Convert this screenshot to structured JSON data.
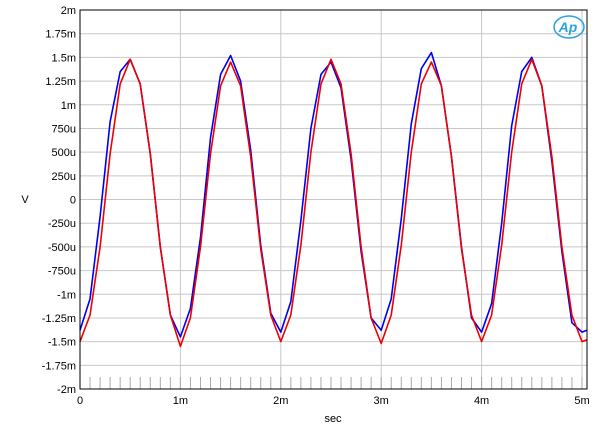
{
  "chart_data": {
    "type": "line",
    "title": "",
    "xlabel": "sec",
    "ylabel": "V",
    "xlim": [
      0,
      0.00505
    ],
    "ylim": [
      -0.002,
      0.002
    ],
    "grid": true,
    "legend": "none",
    "logo_text": "Ap",
    "x_ticks": [
      {
        "value": 0,
        "label": "0"
      },
      {
        "value": 0.001,
        "label": "1m"
      },
      {
        "value": 0.002,
        "label": "2m"
      },
      {
        "value": 0.003,
        "label": "3m"
      },
      {
        "value": 0.004,
        "label": "4m"
      },
      {
        "value": 0.005,
        "label": "5m"
      }
    ],
    "y_ticks": [
      {
        "value": 0.002,
        "label": "2m"
      },
      {
        "value": 0.00175,
        "label": "1.75m"
      },
      {
        "value": 0.0015,
        "label": "1.5m"
      },
      {
        "value": 0.00125,
        "label": "1.25m"
      },
      {
        "value": 0.001,
        "label": "1m"
      },
      {
        "value": 0.00075,
        "label": "750u"
      },
      {
        "value": 0.0005,
        "label": "500u"
      },
      {
        "value": 0.00025,
        "label": "250u"
      },
      {
        "value": 0,
        "label": "0"
      },
      {
        "value": -0.00025,
        "label": "-250u"
      },
      {
        "value": -0.0005,
        "label": "-500u"
      },
      {
        "value": -0.00075,
        "label": "-750u"
      },
      {
        "value": -0.001,
        "label": "-1m"
      },
      {
        "value": -0.00125,
        "label": "-1.25m"
      },
      {
        "value": -0.0015,
        "label": "-1.5m"
      },
      {
        "value": -0.00175,
        "label": "-1.75m"
      },
      {
        "value": -0.002,
        "label": "-2m"
      }
    ],
    "series": [
      {
        "color": "#0000ee",
        "x": [
          0,
          0.0001,
          0.0002,
          0.0003,
          0.0004,
          0.0005,
          0.0006,
          0.0007,
          0.0008,
          0.0009,
          0.001,
          0.0011,
          0.0012,
          0.0013,
          0.0014,
          0.0015,
          0.0016,
          0.0017,
          0.0018,
          0.0019,
          0.002,
          0.0021,
          0.0022,
          0.0023,
          0.0024,
          0.0025,
          0.0026,
          0.0027,
          0.0028,
          0.0029,
          0.003,
          0.0031,
          0.0032,
          0.0033,
          0.0034,
          0.0035,
          0.0036,
          0.0037,
          0.0038,
          0.0039,
          0.004,
          0.0041,
          0.0042,
          0.0043,
          0.0044,
          0.0045,
          0.0046,
          0.0047,
          0.0048,
          0.0049,
          0.005,
          0.00505
        ],
        "values": [
          -0.00138,
          -0.00105,
          -0.00018,
          0.00082,
          0.00135,
          0.00148,
          0.00122,
          0.00048,
          -0.0005,
          -0.00122,
          -0.00145,
          -0.00115,
          -0.0004,
          0.00065,
          0.00132,
          0.00152,
          0.00125,
          0.00052,
          -0.00048,
          -0.0012,
          -0.0014,
          -0.00108,
          -0.00022,
          0.00075,
          0.00132,
          0.00145,
          0.00118,
          0.00042,
          -0.00055,
          -0.00125,
          -0.00138,
          -0.00105,
          -0.0002,
          0.0008,
          0.00138,
          0.00155,
          0.0012,
          0.00045,
          -0.0005,
          -0.00125,
          -0.0014,
          -0.0011,
          -0.00025,
          0.00078,
          0.00135,
          0.0015,
          0.0012,
          0.0004,
          -0.00055,
          -0.0013,
          -0.0014,
          -0.00138
        ]
      },
      {
        "color": "#ee0000",
        "x": [
          0,
          0.0001,
          0.0002,
          0.0003,
          0.0004,
          0.0005,
          0.0006,
          0.0007,
          0.0008,
          0.0009,
          0.001,
          0.0011,
          0.0012,
          0.0013,
          0.0014,
          0.0015,
          0.0016,
          0.0017,
          0.0018,
          0.0019,
          0.002,
          0.0021,
          0.0022,
          0.0023,
          0.0024,
          0.0025,
          0.0026,
          0.0027,
          0.0028,
          0.0029,
          0.003,
          0.0031,
          0.0032,
          0.0033,
          0.0034,
          0.0035,
          0.0036,
          0.0037,
          0.0038,
          0.0039,
          0.004,
          0.0041,
          0.0042,
          0.0043,
          0.0044,
          0.0045,
          0.0046,
          0.0047,
          0.0048,
          0.0049,
          0.005,
          0.00505
        ],
        "values": [
          -0.0015,
          -0.00122,
          -0.0005,
          0.00048,
          0.00122,
          0.00148,
          0.00122,
          0.00048,
          -0.0005,
          -0.00122,
          -0.00155,
          -0.00125,
          -0.0005,
          0.00048,
          0.0012,
          0.00145,
          0.0012,
          0.00045,
          -0.00052,
          -0.00122,
          -0.0015,
          -0.00122,
          -0.00048,
          0.0005,
          0.00122,
          0.00148,
          0.00122,
          0.00048,
          -0.0005,
          -0.00125,
          -0.00152,
          -0.00122,
          -0.00048,
          0.0005,
          0.00122,
          0.00145,
          0.0012,
          0.00045,
          -0.00052,
          -0.00122,
          -0.0015,
          -0.00122,
          -0.00048,
          0.0005,
          0.00122,
          0.00148,
          0.0012,
          0.00045,
          -0.0005,
          -0.00122,
          -0.0015,
          -0.00148
        ]
      }
    ]
  }
}
